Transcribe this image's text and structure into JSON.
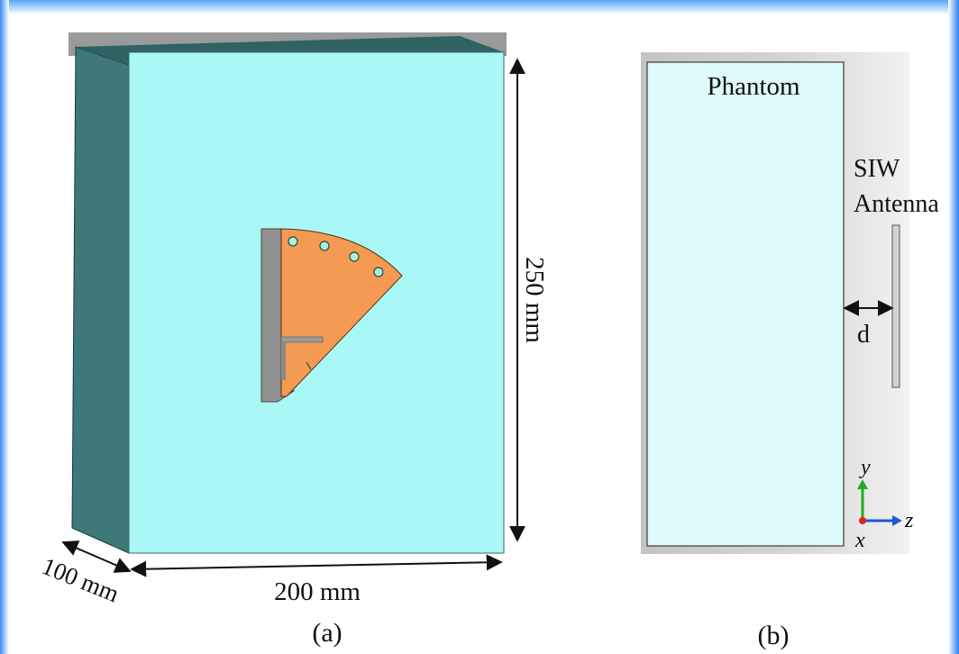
{
  "panel_a": {
    "caption": "(a)",
    "dim_height": "250 mm",
    "dim_width": "200 mm",
    "dim_depth": "100 mm"
  },
  "panel_b": {
    "caption": "(b)",
    "phantom_label": "Phantom",
    "antenna_label_line1": "SIW",
    "antenna_label_line2": "Antenna",
    "distance_label": "d",
    "axis_y": "y",
    "axis_z": "z",
    "axis_x": "x"
  },
  "colors": {
    "phantom_face": "#aaf8f6",
    "phantom_side": "#3e7878",
    "phantom_b": "#dffafb",
    "antenna_patch": "#f49a52",
    "antenna_substrate": "#909090",
    "frame_blue": "#2f87f2",
    "axis_y_green": "#22aa22",
    "axis_z_blue": "#2255dd",
    "axis_x_red": "#dd2222"
  }
}
